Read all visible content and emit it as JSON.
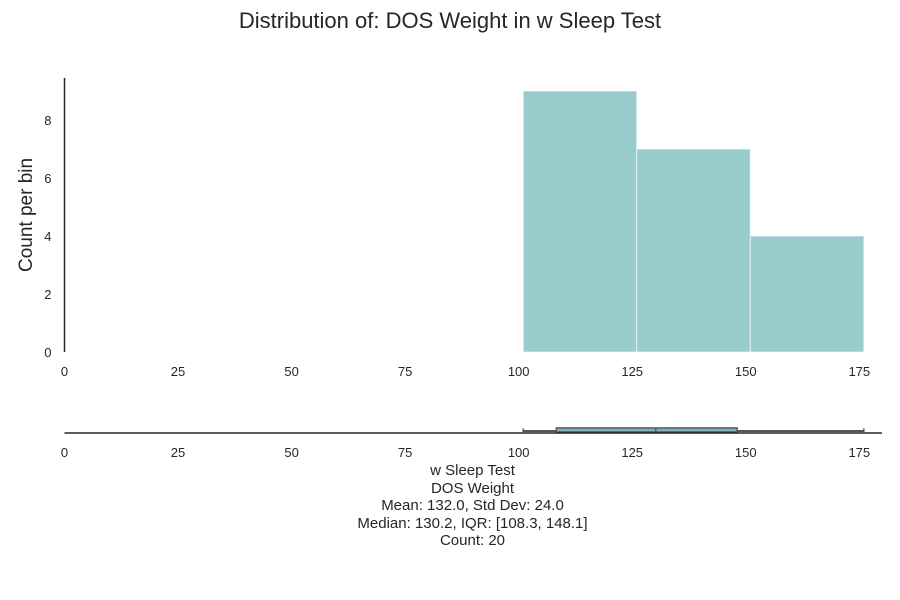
{
  "chart_data": {
    "type": "histogram",
    "title": "Distribution of: DOS Weight in w Sleep Test",
    "ylabel": "Count per bin",
    "xlim": [
      0,
      180
    ],
    "ylim": [
      0,
      9.45
    ],
    "xticks": [
      0,
      25,
      50,
      75,
      100,
      125,
      150,
      175
    ],
    "yticks": [
      0,
      2,
      4,
      6,
      8
    ],
    "bins": [
      {
        "x0": 101,
        "x1": 126,
        "count": 9
      },
      {
        "x0": 126,
        "x1": 151,
        "count": 7
      },
      {
        "x0": 151,
        "x1": 176,
        "count": 4
      }
    ],
    "bar_color": "#99cdcd",
    "boxplot": {
      "min": 101,
      "q1": 108.3,
      "median": 130.2,
      "q3": 148.1,
      "max": 176,
      "box_color": "#7fb2c9"
    },
    "stats": {
      "group": "w Sleep Test",
      "variable": "DOS Weight",
      "mean_std": "Mean: 132.0, Std Dev: 24.0",
      "median_iqr": "Median: 130.2, IQR: [108.3, 148.1]",
      "count": "Count: 20"
    }
  }
}
